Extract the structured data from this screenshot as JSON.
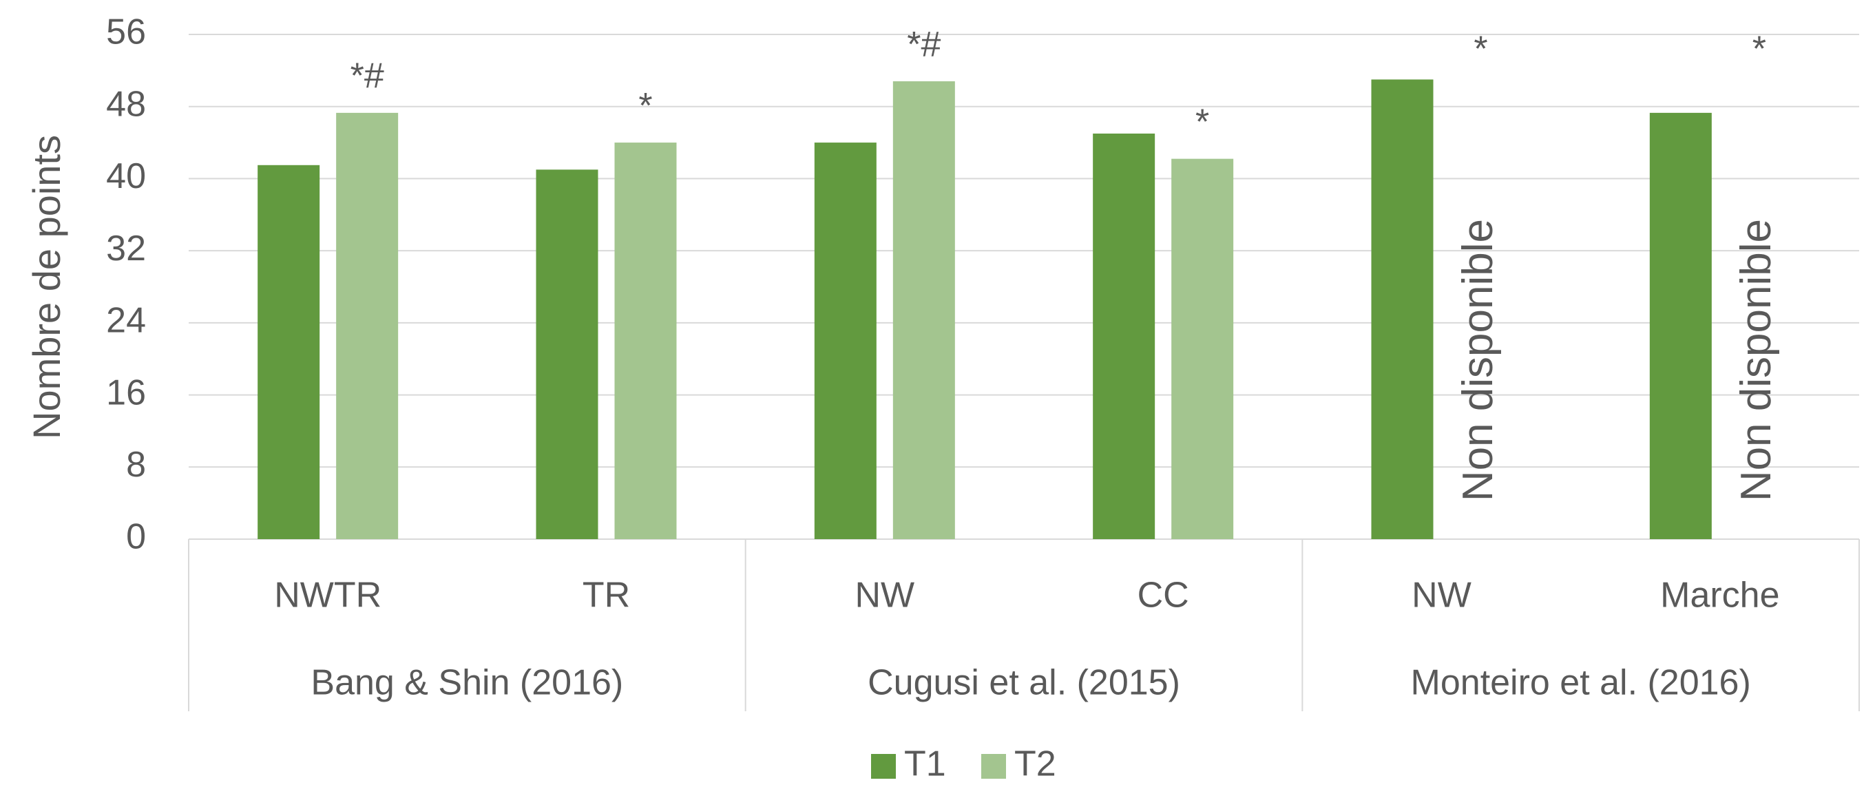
{
  "chart_data": {
    "type": "bar",
    "ylabel": "Nombre de points",
    "groups": [
      {
        "label": "Bang & Shin (2016)",
        "span": [
          0,
          1
        ]
      },
      {
        "label": "Cugusi et al. (2015)",
        "span": [
          2,
          3
        ]
      },
      {
        "label": "Monteiro et al. (2016)",
        "span": [
          4,
          5
        ]
      }
    ],
    "categories": [
      "NWTR",
      "TR",
      "NW",
      "CC",
      "NW",
      "Marche"
    ],
    "series": [
      {
        "name": "T1",
        "color": "#629a3f",
        "values": [
          41.5,
          41,
          44,
          45,
          51,
          47.3
        ]
      },
      {
        "name": "T2",
        "color": "#a3c58f",
        "values": [
          47.3,
          44,
          50.8,
          42.2,
          null,
          null
        ]
      }
    ],
    "annotations": [
      "*#",
      "*",
      "*#",
      "*",
      "*",
      "*"
    ],
    "missing_label": "Non disponible",
    "ylim": [
      0,
      56
    ],
    "yticks": [
      0,
      8,
      16,
      24,
      32,
      40,
      48,
      56
    ],
    "grid": true,
    "legend": "bottom"
  }
}
